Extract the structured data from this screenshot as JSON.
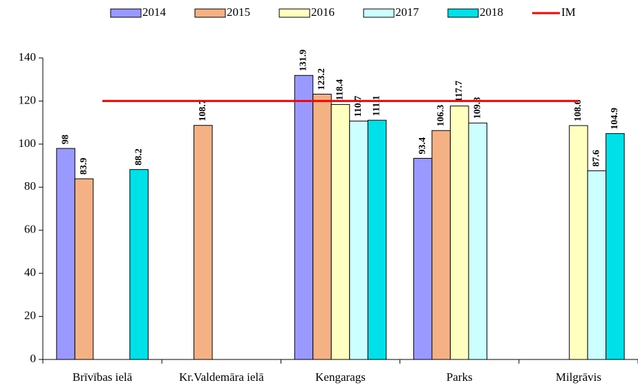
{
  "chart_data": {
    "type": "bar",
    "categories": [
      "Brīvības ielā",
      "Kr.Valdemāra ielā",
      "Kengarags",
      "Parks",
      "Milgrāvis"
    ],
    "series": [
      {
        "name": "2014",
        "color": "#9999ff",
        "values": [
          98,
          null,
          131.9,
          93.4,
          null
        ]
      },
      {
        "name": "2015",
        "color": "#f4b183",
        "values": [
          83.9,
          108.7,
          123.2,
          106.3,
          null
        ]
      },
      {
        "name": "2016",
        "color": "#ffffc0",
        "values": [
          null,
          null,
          118.4,
          117.7,
          108.6
        ]
      },
      {
        "name": "2017",
        "color": "#ccffff",
        "values": [
          null,
          null,
          110.7,
          109.8,
          87.6
        ]
      },
      {
        "name": "2018",
        "color": "#00e0e8",
        "values": [
          88.2,
          null,
          111.1,
          null,
          104.9
        ]
      },
      {
        "name": "IM",
        "color": "#ff0000",
        "type": "line",
        "values": [
          120,
          120,
          120,
          120,
          120
        ]
      }
    ],
    "ylim": [
      0,
      140
    ],
    "yticks": [
      0,
      20,
      40,
      60,
      80,
      100,
      120,
      140
    ],
    "grid": false,
    "legend": "top"
  }
}
